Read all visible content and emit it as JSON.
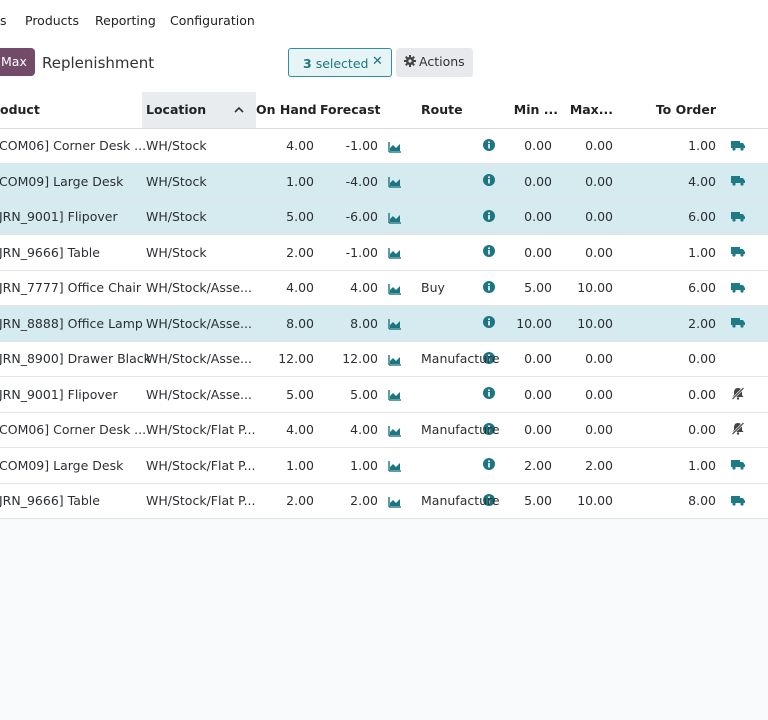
{
  "topmenu": {
    "partial": "s",
    "items": [
      "Products",
      "Reporting",
      "Configuration"
    ]
  },
  "control": {
    "badge": "Max",
    "breadcrumb": "Replenishment",
    "selected_count": "3",
    "selected_label": "selected",
    "clear_icon": "close-icon",
    "actions_label": "Actions",
    "actions_icon": "gear-icon"
  },
  "colors": {
    "accent": "#714b67",
    "teal": "#1c7581",
    "selected_row": "#d5ebef",
    "truck": "#1e7b86"
  },
  "table": {
    "headers": {
      "product": "oduct",
      "location": "Location",
      "on_hand": "On Hand",
      "forecast": "Forecast",
      "route": "Route",
      "min": "Min ...",
      "max": "Max...",
      "to_order": "To Order"
    },
    "sort_indicator": "^",
    "rows": [
      {
        "product": "COM06] Corner Desk ...",
        "location": "WH/Stock",
        "on_hand": "4.00",
        "forecast": "-1.00",
        "route": "",
        "min": "0.00",
        "max": "0.00",
        "to_order": "1.00",
        "action": "truck-icon",
        "selected": false
      },
      {
        "product": "COM09] Large Desk",
        "location": "WH/Stock",
        "on_hand": "1.00",
        "forecast": "-4.00",
        "route": "",
        "min": "0.00",
        "max": "0.00",
        "to_order": "4.00",
        "action": "truck-icon",
        "selected": true
      },
      {
        "product": "JRN_9001] Flipover",
        "location": "WH/Stock",
        "on_hand": "5.00",
        "forecast": "-6.00",
        "route": "",
        "min": "0.00",
        "max": "0.00",
        "to_order": "6.00",
        "action": "truck-icon",
        "selected": true
      },
      {
        "product": "JRN_9666] Table",
        "location": "WH/Stock",
        "on_hand": "2.00",
        "forecast": "-1.00",
        "route": "",
        "min": "0.00",
        "max": "0.00",
        "to_order": "1.00",
        "action": "truck-icon",
        "selected": false
      },
      {
        "product": "JRN_7777] Office Chair",
        "location": "WH/Stock/Asse...",
        "on_hand": "4.00",
        "forecast": "4.00",
        "route": "Buy",
        "min": "5.00",
        "max": "10.00",
        "to_order": "6.00",
        "action": "truck-icon",
        "selected": false
      },
      {
        "product": "JRN_8888] Office Lamp",
        "location": "WH/Stock/Asse...",
        "on_hand": "8.00",
        "forecast": "8.00",
        "route": "",
        "min": "10.00",
        "max": "10.00",
        "to_order": "2.00",
        "action": "truck-icon",
        "selected": true
      },
      {
        "product": "JRN_8900] Drawer Black",
        "location": "WH/Stock/Asse...",
        "on_hand": "12.00",
        "forecast": "12.00",
        "route": "Manufacture",
        "min": "0.00",
        "max": "0.00",
        "to_order": "0.00",
        "action": "",
        "selected": false
      },
      {
        "product": "JRN_9001] Flipover",
        "location": "WH/Stock/Asse...",
        "on_hand": "5.00",
        "forecast": "5.00",
        "route": "",
        "min": "0.00",
        "max": "0.00",
        "to_order": "0.00",
        "action": "snooze-icon",
        "selected": false
      },
      {
        "product": "COM06] Corner Desk ...",
        "location": "WH/Stock/Flat P...",
        "on_hand": "4.00",
        "forecast": "4.00",
        "route": "Manufacture",
        "min": "0.00",
        "max": "0.00",
        "to_order": "0.00",
        "action": "snooze-icon",
        "selected": false
      },
      {
        "product": "COM09] Large Desk",
        "location": "WH/Stock/Flat P...",
        "on_hand": "1.00",
        "forecast": "1.00",
        "route": "",
        "min": "2.00",
        "max": "2.00",
        "to_order": "1.00",
        "action": "truck-icon",
        "selected": false
      },
      {
        "product": "JRN_9666] Table",
        "location": "WH/Stock/Flat P...",
        "on_hand": "2.00",
        "forecast": "2.00",
        "route": "Manufacture",
        "min": "5.00",
        "max": "10.00",
        "to_order": "8.00",
        "action": "truck-icon",
        "selected": false
      }
    ]
  }
}
